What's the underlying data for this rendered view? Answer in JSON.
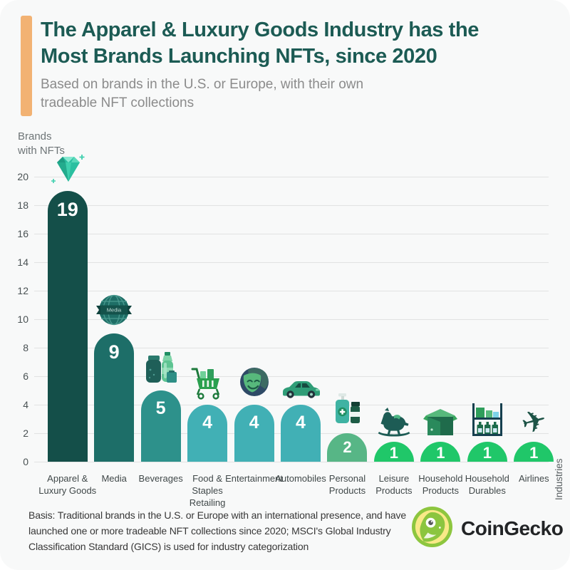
{
  "header": {
    "accent_color": "#f2b273",
    "title_lines": [
      "The Apparel & Luxury Goods Industry has the",
      "Most Brands Launching NFTs, since 2020"
    ],
    "title_color": "#1c5b54",
    "subtitle_lines": [
      "Based on brands in the U.S. or Europe, with their own",
      "tradeable NFT collections"
    ]
  },
  "axis": {
    "ylabel_lines": [
      "Brands",
      "with NFTs"
    ],
    "xlabel": "Industries"
  },
  "chart_data": {
    "type": "bar",
    "title": "The Apparel & Luxury Goods Industry has the Most Brands Launching NFTs, since 2020",
    "subtitle": "Based on brands in the U.S. or Europe, with their own tradeable NFT collections",
    "ylabel": "Brands with NFTs",
    "xlabel": "Industries",
    "ylim": [
      0,
      20
    ],
    "yticks": [
      0,
      2,
      4,
      6,
      8,
      10,
      12,
      14,
      16,
      18,
      20
    ],
    "grid": "horizontal",
    "categories": [
      {
        "label": "Apparel & Luxury Goods",
        "lines": [
          "Apparel &",
          "Luxury Goods"
        ]
      },
      {
        "label": "Media",
        "lines": [
          "Media"
        ]
      },
      {
        "label": "Beverages",
        "lines": [
          "Beverages"
        ]
      },
      {
        "label": "Food & Staples Retailing",
        "lines": [
          "Food &",
          "Staples",
          "Retailing"
        ]
      },
      {
        "label": "Entertainment",
        "lines": [
          "Entertainment"
        ]
      },
      {
        "label": "Automobiles",
        "lines": [
          "Automobiles"
        ]
      },
      {
        "label": "Personal Products",
        "lines": [
          "Personal",
          "Products"
        ]
      },
      {
        "label": "Leisure Products",
        "lines": [
          "Leisure",
          "Products"
        ]
      },
      {
        "label": "Household Products",
        "lines": [
          "Household",
          "Products"
        ]
      },
      {
        "label": "Household Durables",
        "lines": [
          "Household",
          "Durables"
        ]
      },
      {
        "label": "Airlines",
        "lines": [
          "Airlines"
        ]
      }
    ],
    "values": [
      19,
      9,
      5,
      4,
      4,
      4,
      2,
      1,
      1,
      1,
      1
    ],
    "bar_colors": [
      "#144f49",
      "#1d6e68",
      "#2d918b",
      "#41b0b5",
      "#41b0b5",
      "#41b0b5",
      "#57b686",
      "#20c769",
      "#20c769",
      "#20c769",
      "#20c769"
    ],
    "icons": [
      "gem-icon",
      "media-globe-icon",
      "beverages-icon",
      "shopping-cart-icon",
      "theater-masks-icon",
      "car-icon",
      "sanitizer-icon",
      "rocking-horse-icon",
      "box-icon",
      "shelf-icon",
      "airplane-icon"
    ],
    "media_badge_text": "Media"
  },
  "footer": {
    "lines": [
      "Basis: Traditional brands in the U.S. or Europe with an international presence, and have",
      "launched one or more tradeable NFT collections since 2020; MSCI's Global Industry",
      "Classification Standard (GICS) is used for industry categorization"
    ]
  },
  "logo": {
    "text": "CoinGecko",
    "ring_color": "#8dc63f",
    "face_color": "#f9e988"
  }
}
